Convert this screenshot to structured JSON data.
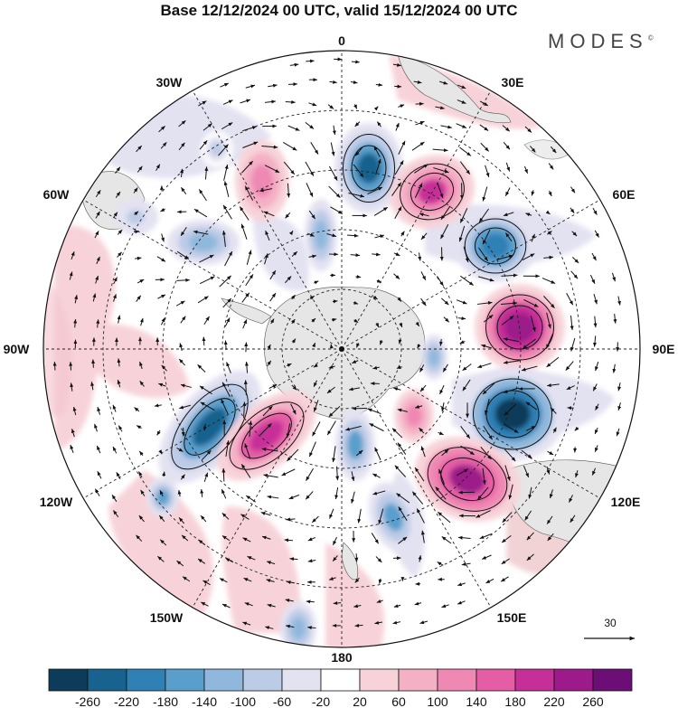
{
  "title": "Base 12/12/2024 00 UTC, valid 15/12/2024 00 UTC",
  "brand": "MODES",
  "brand_mark": "©",
  "longitude_labels": {
    "n0": "0",
    "e30": "30E",
    "e60": "60E",
    "e90": "90E",
    "e120": "120E",
    "e150": "150E",
    "s180": "180",
    "w150": "150W",
    "w120": "120W",
    "w90": "90W",
    "w60": "60W",
    "w30": "30W"
  },
  "vector_reference": "30",
  "colorbar": {
    "labels": [
      "-260",
      "-220",
      "-180",
      "-140",
      "-100",
      "-60",
      "-20",
      "20",
      "60",
      "100",
      "140",
      "180",
      "220",
      "260"
    ],
    "colors": [
      "#0d3b5a",
      "#18628f",
      "#2f80b5",
      "#5a9fcc",
      "#8fb8dc",
      "#bccbe6",
      "#e3e2f1",
      "#ffffff",
      "#f7d3d9",
      "#f4b1c6",
      "#ef88b3",
      "#e45da5",
      "#c72f98",
      "#9c1a8a",
      "#6b0f77"
    ]
  },
  "anomalies": [
    {
      "name": "blue-center-n",
      "value": -220
    },
    {
      "name": "pink-center-ne",
      "value": 200
    },
    {
      "name": "blue-center-e1",
      "value": -200
    },
    {
      "name": "pink-center-e",
      "value": 260
    },
    {
      "name": "blue-center-e2",
      "value": -260
    },
    {
      "name": "pink-center-se",
      "value": 240
    },
    {
      "name": "blue-center-sw1",
      "value": -220
    },
    {
      "name": "pink-center-sw",
      "value": 220
    }
  ]
}
